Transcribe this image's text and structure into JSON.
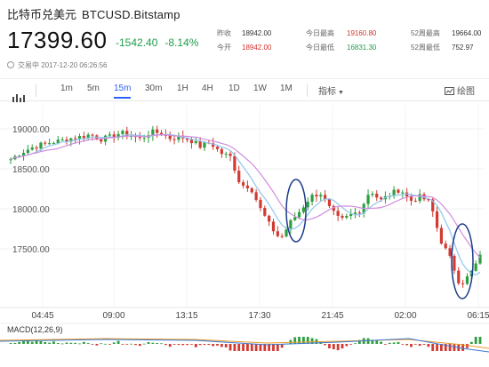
{
  "header": {
    "title": "比特币兑美元",
    "symbol": "BTCUSD.Bitstamp"
  },
  "quote": {
    "price": "17399.60",
    "change": "-1542.40",
    "change_pct": "-8.14%"
  },
  "stats": [
    {
      "label": "昨收",
      "value": "18942.00",
      "color": "gray"
    },
    {
      "label": "今开",
      "value": "18942.00",
      "color": "red"
    },
    {
      "label": "今日最高",
      "value": "19160.80",
      "color": "red"
    },
    {
      "label": "今日最低",
      "value": "16831.30",
      "color": "green"
    },
    {
      "label": "52周最高",
      "value": "19664.00",
      "color": "gray"
    },
    {
      "label": "52周最低",
      "value": "752.97",
      "color": "gray"
    }
  ],
  "trade_time": "交易中 2017-12-20 06:26:56",
  "toolbar": {
    "intervals": [
      "1m",
      "5m",
      "15m",
      "30m",
      "1H",
      "4H",
      "1D",
      "1W",
      "1M"
    ],
    "active_interval": "15m",
    "indicator_label": "指标",
    "draw_label": "绘图"
  },
  "chart": {
    "y_ticks": [
      "19000.00",
      "18500.00",
      "18000.00",
      "17500.00"
    ],
    "x_ticks": [
      "04:45",
      "09:00",
      "13:15",
      "17:30",
      "21:45",
      "02:00",
      "06:15"
    ],
    "macd_label": "MACD(12,26,9)",
    "up_color": "#2e9e3e",
    "down_color": "#d23a32",
    "ma_colors": [
      "#d08ee0",
      "#8fc6f0",
      "#e8c24a"
    ],
    "circle_color": "#1a3a8a"
  },
  "chart_data": {
    "type": "candlestick",
    "interval": "15m",
    "x_ticks": [
      "04:45",
      "09:00",
      "13:15",
      "17:30",
      "21:45",
      "02:00",
      "06:15"
    ],
    "y_ticks": [
      19000,
      18500,
      18000,
      17500
    ],
    "close_series": [
      18620,
      18700,
      18760,
      18800,
      18830,
      18850,
      18880,
      18900,
      18930,
      18870,
      18900,
      18950,
      18920,
      18870,
      18960,
      18950,
      18880,
      18900,
      18860,
      18780,
      18830,
      18700,
      18650,
      18300,
      18280,
      18000,
      17780,
      17620,
      17830,
      17980,
      18150,
      18200,
      17990,
      17850,
      17920,
      17980,
      18240,
      18100,
      18180,
      18250,
      18100,
      18150,
      18080,
      17620,
      17380,
      17050,
      17180,
      17400
    ],
    "indicator": "MACD(12,26,9)"
  }
}
